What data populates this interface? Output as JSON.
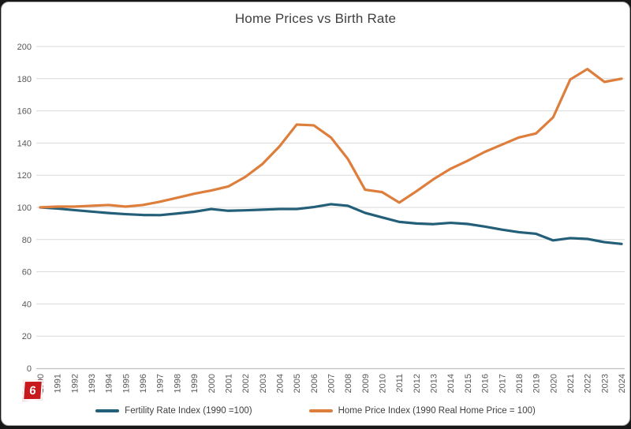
{
  "chart_data": {
    "type": "line",
    "title": "Home Prices vs Birth Rate",
    "x": [
      1990,
      1991,
      1992,
      1993,
      1994,
      1995,
      1996,
      1997,
      1998,
      1999,
      2000,
      2001,
      2002,
      2003,
      2004,
      2005,
      2006,
      2007,
      2008,
      2009,
      2010,
      2011,
      2012,
      2013,
      2014,
      2015,
      2016,
      2017,
      2018,
      2019,
      2020,
      2021,
      2022,
      2023,
      2024
    ],
    "series": [
      {
        "name": "Fertility Rate Index (1990 =100)",
        "color": "#235F78",
        "values": [
          100,
          99.3,
          98.3,
          97.4,
          96.5,
          95.8,
          95.3,
          95.2,
          96.2,
          97.3,
          99,
          97.9,
          98.2,
          98.6,
          99,
          99,
          100.2,
          102,
          101,
          96.6,
          93.8,
          91,
          90,
          89.6,
          90.4,
          89.7,
          88.1,
          86.2,
          84.6,
          83.6,
          79.5,
          80.9,
          80.4,
          78.4,
          77.3
        ]
      },
      {
        "name": "Home Price Index (1990 Real Home Price = 100)",
        "color": "#DE7E3C",
        "values": [
          100,
          100.5,
          100.5,
          101,
          101.5,
          100.5,
          101.5,
          103.5,
          106,
          108.5,
          110.5,
          113,
          119,
          127,
          138,
          151.5,
          151,
          143.5,
          130,
          111,
          109.5,
          103,
          110,
          117.5,
          124,
          129,
          134.5,
          139,
          143.5,
          146,
          156,
          179.5,
          186,
          178,
          180
        ]
      }
    ],
    "ylim": [
      0,
      200
    ],
    "ytick_step": 20,
    "grid": "horizontal-only",
    "legend_position": "bottom"
  },
  "annotation": {
    "badge_label": "6",
    "badge_color": "#C8191D"
  },
  "style_colors": {
    "grid": "#D9D9D9",
    "axis": "#BFBFBF",
    "tick_text": "#595959",
    "title_text": "#404040"
  }
}
